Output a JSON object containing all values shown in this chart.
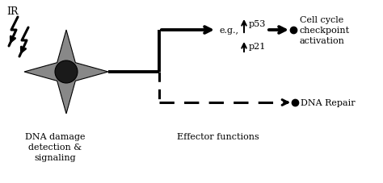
{
  "bg_color": "#ffffff",
  "text_IR": "IR",
  "text_cell_label": "DNA damage\ndetection &\nsignaling",
  "text_effector": "Effector functions",
  "text_eg": "e.g.,",
  "text_p53": "p53",
  "text_p21": "p21",
  "text_cell_cycle": "Cell cycle\ncheckpoint\nactivation",
  "text_dna_repair": "DNA Repair",
  "cell_color": "#888888",
  "nucleus_color": "#1a1a1a",
  "line_color": "#000000"
}
